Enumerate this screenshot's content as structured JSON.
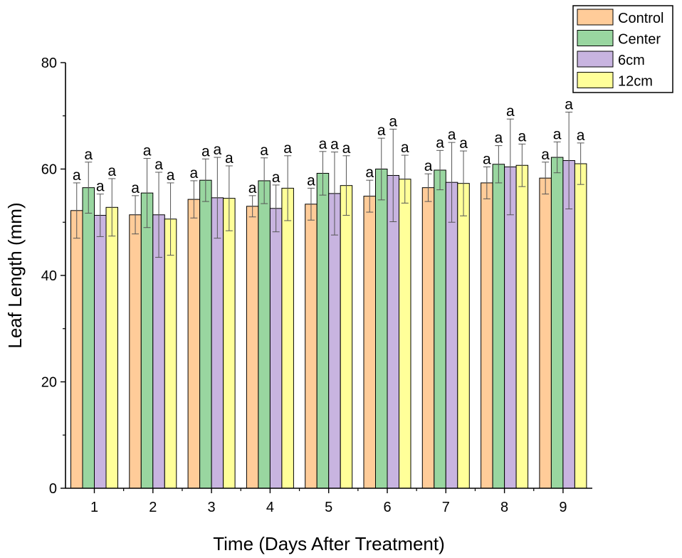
{
  "chart_data": {
    "type": "bar",
    "xlabel": "Time (Days After Treatment)",
    "ylabel": "Leaf Length (mm)",
    "ylim": [
      0,
      80
    ],
    "yticks": [
      0,
      20,
      40,
      60,
      80
    ],
    "categories": [
      "1",
      "2",
      "3",
      "4",
      "5",
      "6",
      "7",
      "8",
      "9"
    ],
    "legend_position": "top-right",
    "series": [
      {
        "name": "Control",
        "color": "#FFCC99",
        "values": [
          52.2,
          51.4,
          54.3,
          53.0,
          53.4,
          54.9,
          56.5,
          57.4,
          58.3
        ],
        "errors": [
          5.2,
          3.6,
          3.5,
          2.0,
          3.0,
          3.0,
          2.6,
          3.0,
          3.0
        ],
        "labels": [
          "a",
          "a",
          "a",
          "a",
          "a",
          "a",
          "a",
          "a",
          "a"
        ]
      },
      {
        "name": "Center",
        "color": "#99D6A0",
        "values": [
          56.5,
          55.5,
          57.9,
          57.8,
          59.2,
          60.0,
          59.8,
          60.9,
          62.2
        ],
        "errors": [
          4.8,
          6.5,
          4.0,
          4.3,
          4.1,
          5.8,
          3.7,
          3.5,
          2.9
        ],
        "labels": [
          "a",
          "a",
          "a",
          "a",
          "a",
          "a",
          "a",
          "a",
          "a"
        ]
      },
      {
        "name": "6cm",
        "color": "#C8B4E0",
        "values": [
          51.3,
          51.4,
          54.6,
          52.6,
          55.4,
          58.8,
          57.5,
          60.4,
          61.6
        ],
        "errors": [
          4.0,
          8.0,
          7.6,
          4.4,
          7.8,
          8.7,
          7.5,
          9.0,
          9.1
        ],
        "labels": [
          "a",
          "a",
          "a",
          "a",
          "a",
          "a",
          "a",
          "a",
          "a"
        ]
      },
      {
        "name": "12cm",
        "color": "#FFFF99",
        "values": [
          52.8,
          50.6,
          54.5,
          56.4,
          56.9,
          58.1,
          57.3,
          60.7,
          61.0
        ],
        "errors": [
          5.4,
          6.8,
          6.1,
          6.1,
          5.6,
          4.5,
          6.1,
          4.0,
          3.9
        ],
        "labels": [
          "a",
          "a",
          "a",
          "a",
          "a",
          "a",
          "a",
          "a",
          "a"
        ]
      }
    ]
  }
}
